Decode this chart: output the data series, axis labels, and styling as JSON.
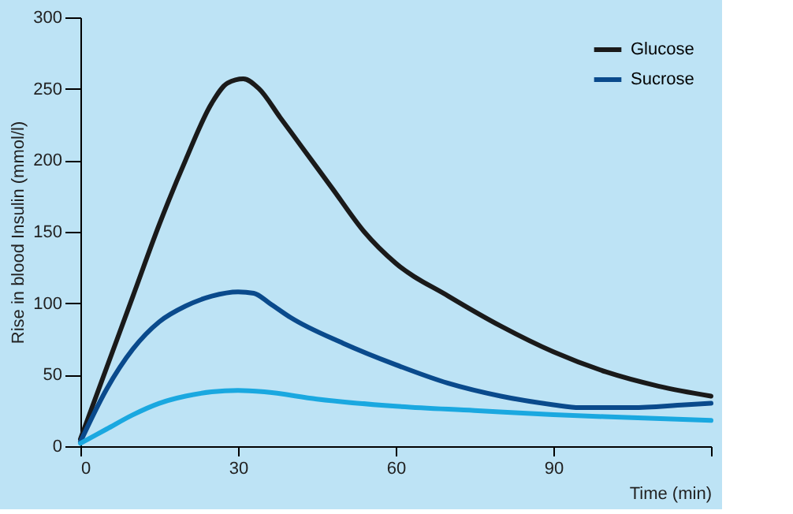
{
  "chart_data": {
    "type": "line",
    "ylabel": "Rise in blood Insulin (mmol/l)",
    "xlabel": "Time (min)",
    "xlim": [
      0,
      120
    ],
    "xticks": [
      0,
      30,
      60,
      90,
      {
        "value": 120,
        "label": null
      }
    ],
    "ylim": [
      0,
      300
    ],
    "yticks": [
      0,
      50,
      100,
      150,
      200,
      250,
      300
    ],
    "grid": false,
    "legend": "top right",
    "marker": "none",
    "line_style": "solid",
    "series": [
      {
        "name": "Glucose",
        "color": "#1a1a1a",
        "x": [
          0,
          5,
          10,
          15,
          20,
          25,
          28,
          31,
          34,
          38,
          42,
          48,
          54,
          60,
          70,
          80,
          90,
          100,
          110,
          120
        ],
        "values": [
          5,
          55,
          105,
          155,
          200,
          240,
          254,
          257,
          250,
          230,
          210,
          180,
          150,
          128,
          105,
          84,
          66,
          52,
          42,
          35
        ]
      },
      {
        "name": "Sucrose",
        "color": "#0a4a8c",
        "x": [
          0,
          5,
          10,
          15,
          20,
          25,
          30,
          33,
          36,
          40,
          50,
          60,
          70,
          80,
          90,
          95,
          105,
          115,
          120
        ],
        "values": [
          3,
          40,
          68,
          87,
          98,
          105,
          108,
          107,
          100,
          90,
          72,
          57,
          44,
          35,
          29,
          27,
          27,
          29,
          30
        ]
      },
      {
        "color": "#1aa8e0",
        "x": [
          0,
          5,
          10,
          15,
          20,
          25,
          30,
          35,
          45,
          60,
          75,
          90,
          105,
          120
        ],
        "values": [
          2,
          12,
          22,
          30,
          35,
          38,
          39,
          38,
          33,
          28,
          25,
          22,
          20,
          18
        ]
      }
    ]
  }
}
